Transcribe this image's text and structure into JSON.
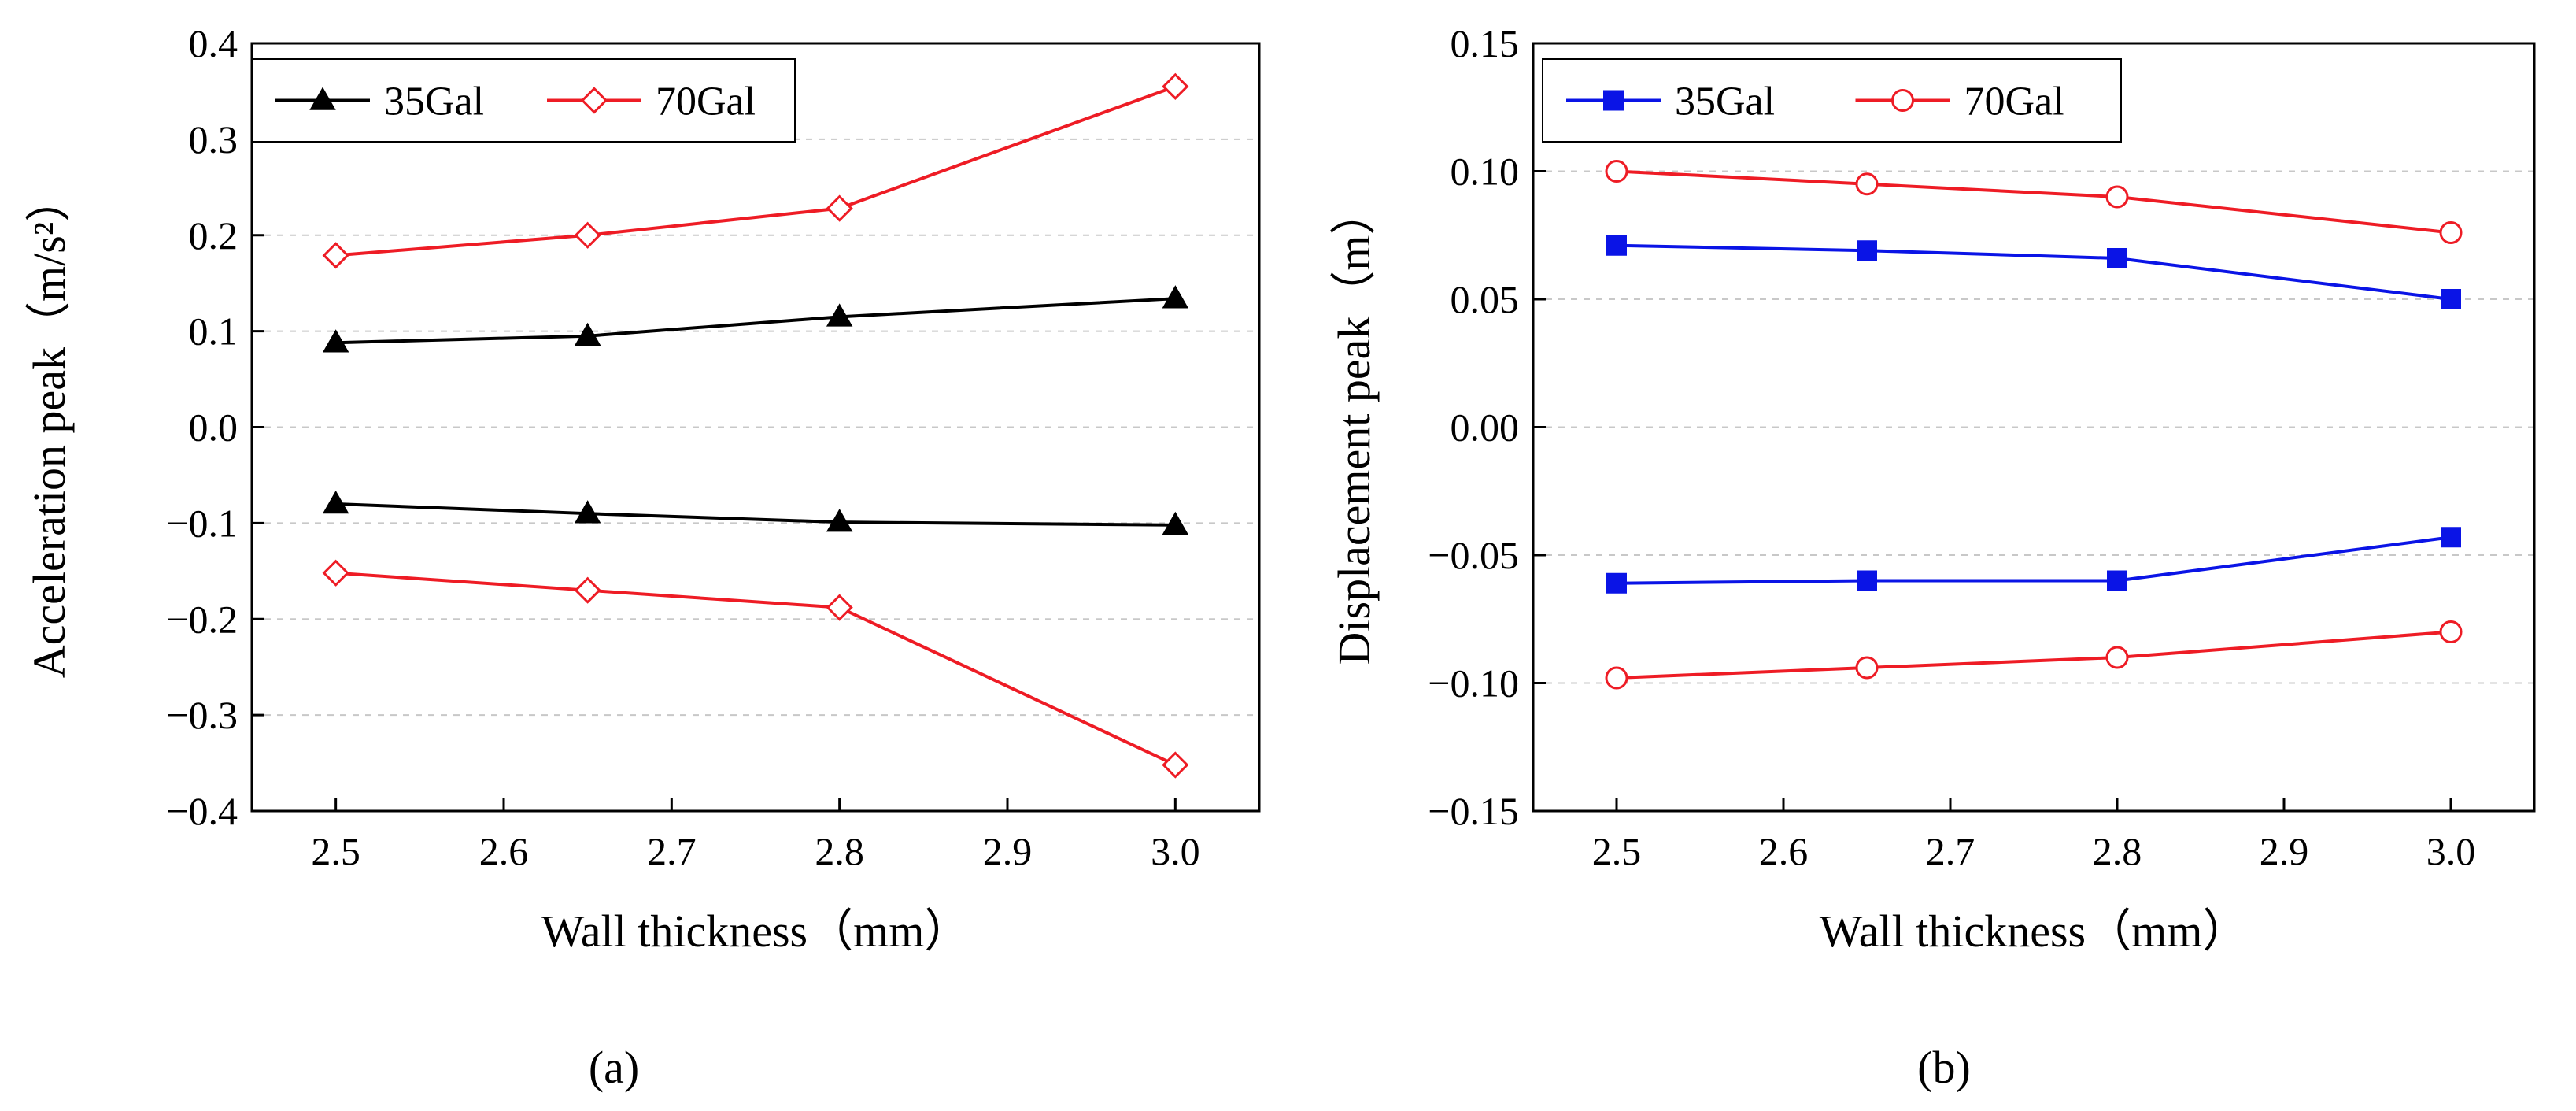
{
  "chart_data": [
    {
      "type": "line",
      "panel_label": "(a)",
      "xlabel": "Wall thickness（mm）",
      "ylabel": "Acceleration peak（m/s²）",
      "xlim": [
        2.45,
        3.05
      ],
      "ylim": [
        -0.4,
        0.4
      ],
      "xticks": [
        2.5,
        2.6,
        2.7,
        2.8,
        2.9,
        3.0
      ],
      "xtick_labels": [
        "2.5",
        "2.6",
        "2.7",
        "2.8",
        "2.9",
        "3.0"
      ],
      "yticks": [
        -0.4,
        -0.3,
        -0.2,
        -0.1,
        0.0,
        0.1,
        0.2,
        0.3,
        0.4
      ],
      "ytick_labels": [
        "−0.4",
        "−0.3",
        "−0.2",
        "−0.1",
        "0.0",
        "0.1",
        "0.2",
        "0.3",
        "0.4"
      ],
      "grid": "horizontal dashed",
      "legend_position": "top-left",
      "x": [
        2.5,
        2.65,
        2.8,
        3.0
      ],
      "series": [
        {
          "name": "35Gal",
          "legend": true,
          "color": "#000000",
          "marker": "triangle-filled",
          "values": [
            0.088,
            0.095,
            0.115,
            0.134
          ]
        },
        {
          "name": "35Gal",
          "legend": false,
          "color": "#000000",
          "marker": "triangle-filled",
          "values": [
            -0.08,
            -0.09,
            -0.099,
            -0.102
          ]
        },
        {
          "name": "70Gal",
          "legend": true,
          "color": "#ee1c25",
          "marker": "diamond-open",
          "values": [
            0.179,
            0.2,
            0.228,
            0.355
          ]
        },
        {
          "name": "70Gal",
          "legend": false,
          "color": "#ee1c25",
          "marker": "diamond-open",
          "values": [
            -0.152,
            -0.17,
            -0.188,
            -0.352
          ]
        }
      ]
    },
    {
      "type": "line",
      "panel_label": "(b)",
      "xlabel": "Wall thickness（mm）",
      "ylabel": "Displacement peak（m）",
      "xlim": [
        2.45,
        3.05
      ],
      "ylim": [
        -0.15,
        0.15
      ],
      "xticks": [
        2.5,
        2.6,
        2.7,
        2.8,
        2.9,
        3.0
      ],
      "xtick_labels": [
        "2.5",
        "2.6",
        "2.7",
        "2.8",
        "2.9",
        "3.0"
      ],
      "yticks": [
        -0.15,
        -0.1,
        -0.05,
        0.0,
        0.05,
        0.1,
        0.15
      ],
      "ytick_labels": [
        "−0.15",
        "−0.10",
        "−0.05",
        "0.00",
        "0.05",
        "0.10",
        "0.15"
      ],
      "grid": "horizontal dashed",
      "legend_position": "top-left",
      "x": [
        2.5,
        2.65,
        2.8,
        3.0
      ],
      "series": [
        {
          "name": "35Gal",
          "legend": true,
          "color": "#0a14e6",
          "marker": "square-filled",
          "values": [
            0.071,
            0.069,
            0.066,
            0.05
          ]
        },
        {
          "name": "35Gal",
          "legend": false,
          "color": "#0a14e6",
          "marker": "square-filled",
          "values": [
            -0.061,
            -0.06,
            -0.06,
            -0.043
          ]
        },
        {
          "name": "70Gal",
          "legend": true,
          "color": "#ee1c25",
          "marker": "circle-open",
          "values": [
            0.1,
            0.095,
            0.09,
            0.076
          ]
        },
        {
          "name": "70Gal",
          "legend": false,
          "color": "#ee1c25",
          "marker": "circle-open",
          "values": [
            -0.098,
            -0.094,
            -0.09,
            -0.08
          ]
        }
      ]
    }
  ]
}
